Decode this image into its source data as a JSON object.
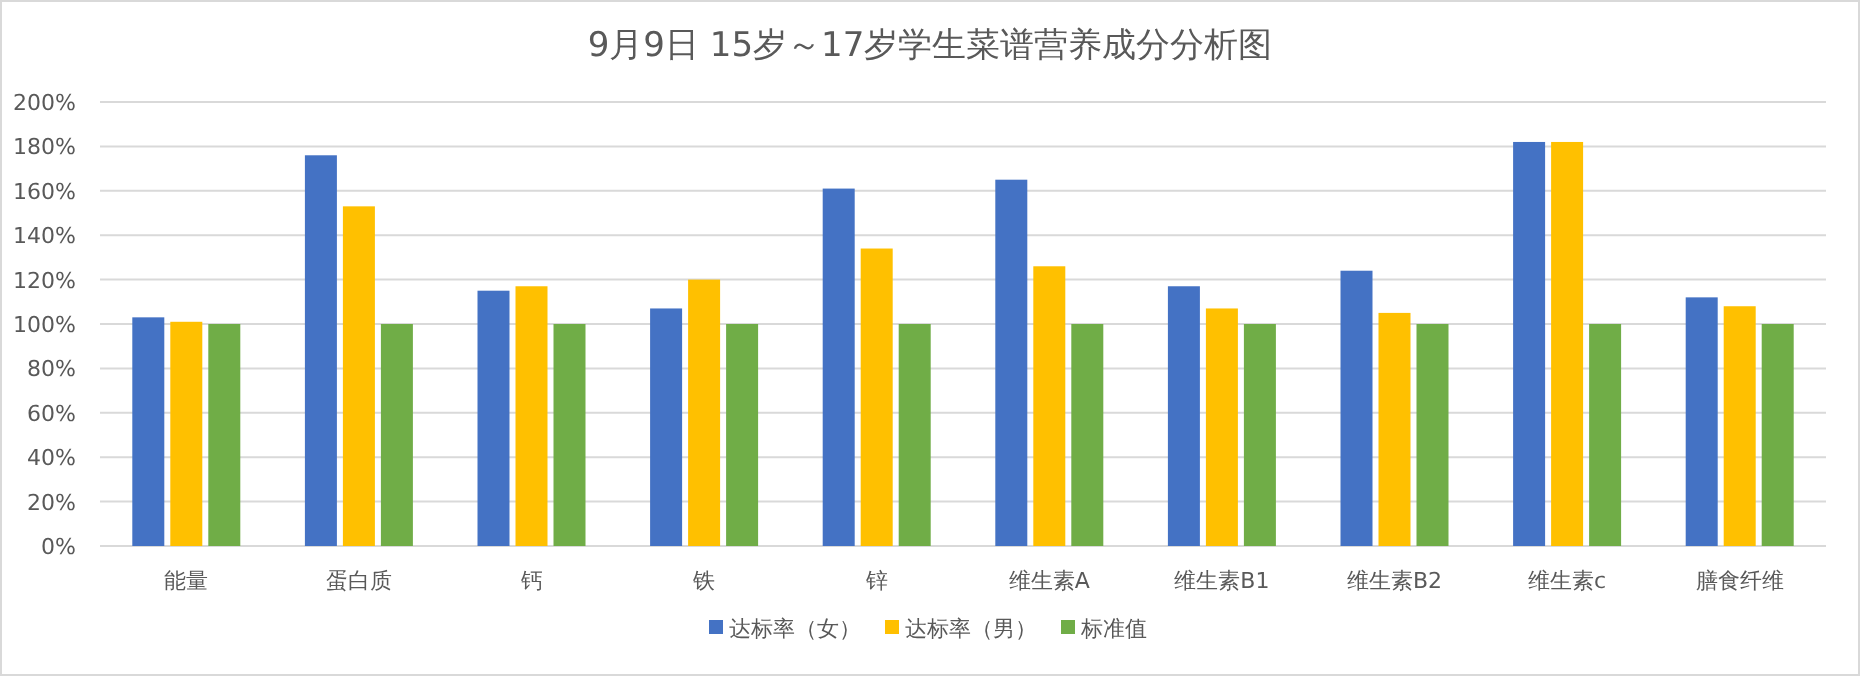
{
  "chart_data": {
    "type": "bar",
    "title": "9月9日 15岁～17岁学生菜谱营养成分分析图",
    "categories": [
      "能量",
      "蛋白质",
      "钙",
      "铁",
      "锌",
      "维生素A",
      "维生素B1",
      "维生素B2",
      "维生素c",
      "膳食纤维"
    ],
    "series": [
      {
        "name": "达标率（女）",
        "color": "#4472c4",
        "values": [
          103,
          176,
          115,
          107,
          161,
          165,
          117,
          124,
          182,
          112
        ]
      },
      {
        "name": "达标率（男）",
        "color": "#ffc000",
        "values": [
          101,
          153,
          117,
          120,
          134,
          126,
          107,
          105,
          182,
          108
        ]
      },
      {
        "name": "标准值",
        "color": "#70ad47",
        "values": [
          100,
          100,
          100,
          100,
          100,
          100,
          100,
          100,
          100,
          100
        ]
      }
    ],
    "ylim": [
      0,
      200
    ],
    "yticks": [
      {
        "value": 0,
        "label": "0%"
      },
      {
        "value": 20,
        "label": "20%"
      },
      {
        "value": 40,
        "label": "40%"
      },
      {
        "value": 60,
        "label": "60%"
      },
      {
        "value": 80,
        "label": "80%"
      },
      {
        "value": 100,
        "label": "100%"
      },
      {
        "value": 120,
        "label": "120%"
      },
      {
        "value": 140,
        "label": "140%"
      },
      {
        "value": 160,
        "label": "160%"
      },
      {
        "value": 180,
        "label": "180%"
      },
      {
        "value": 200,
        "label": "200%"
      }
    ],
    "grid": "y",
    "legend": "bottom"
  }
}
